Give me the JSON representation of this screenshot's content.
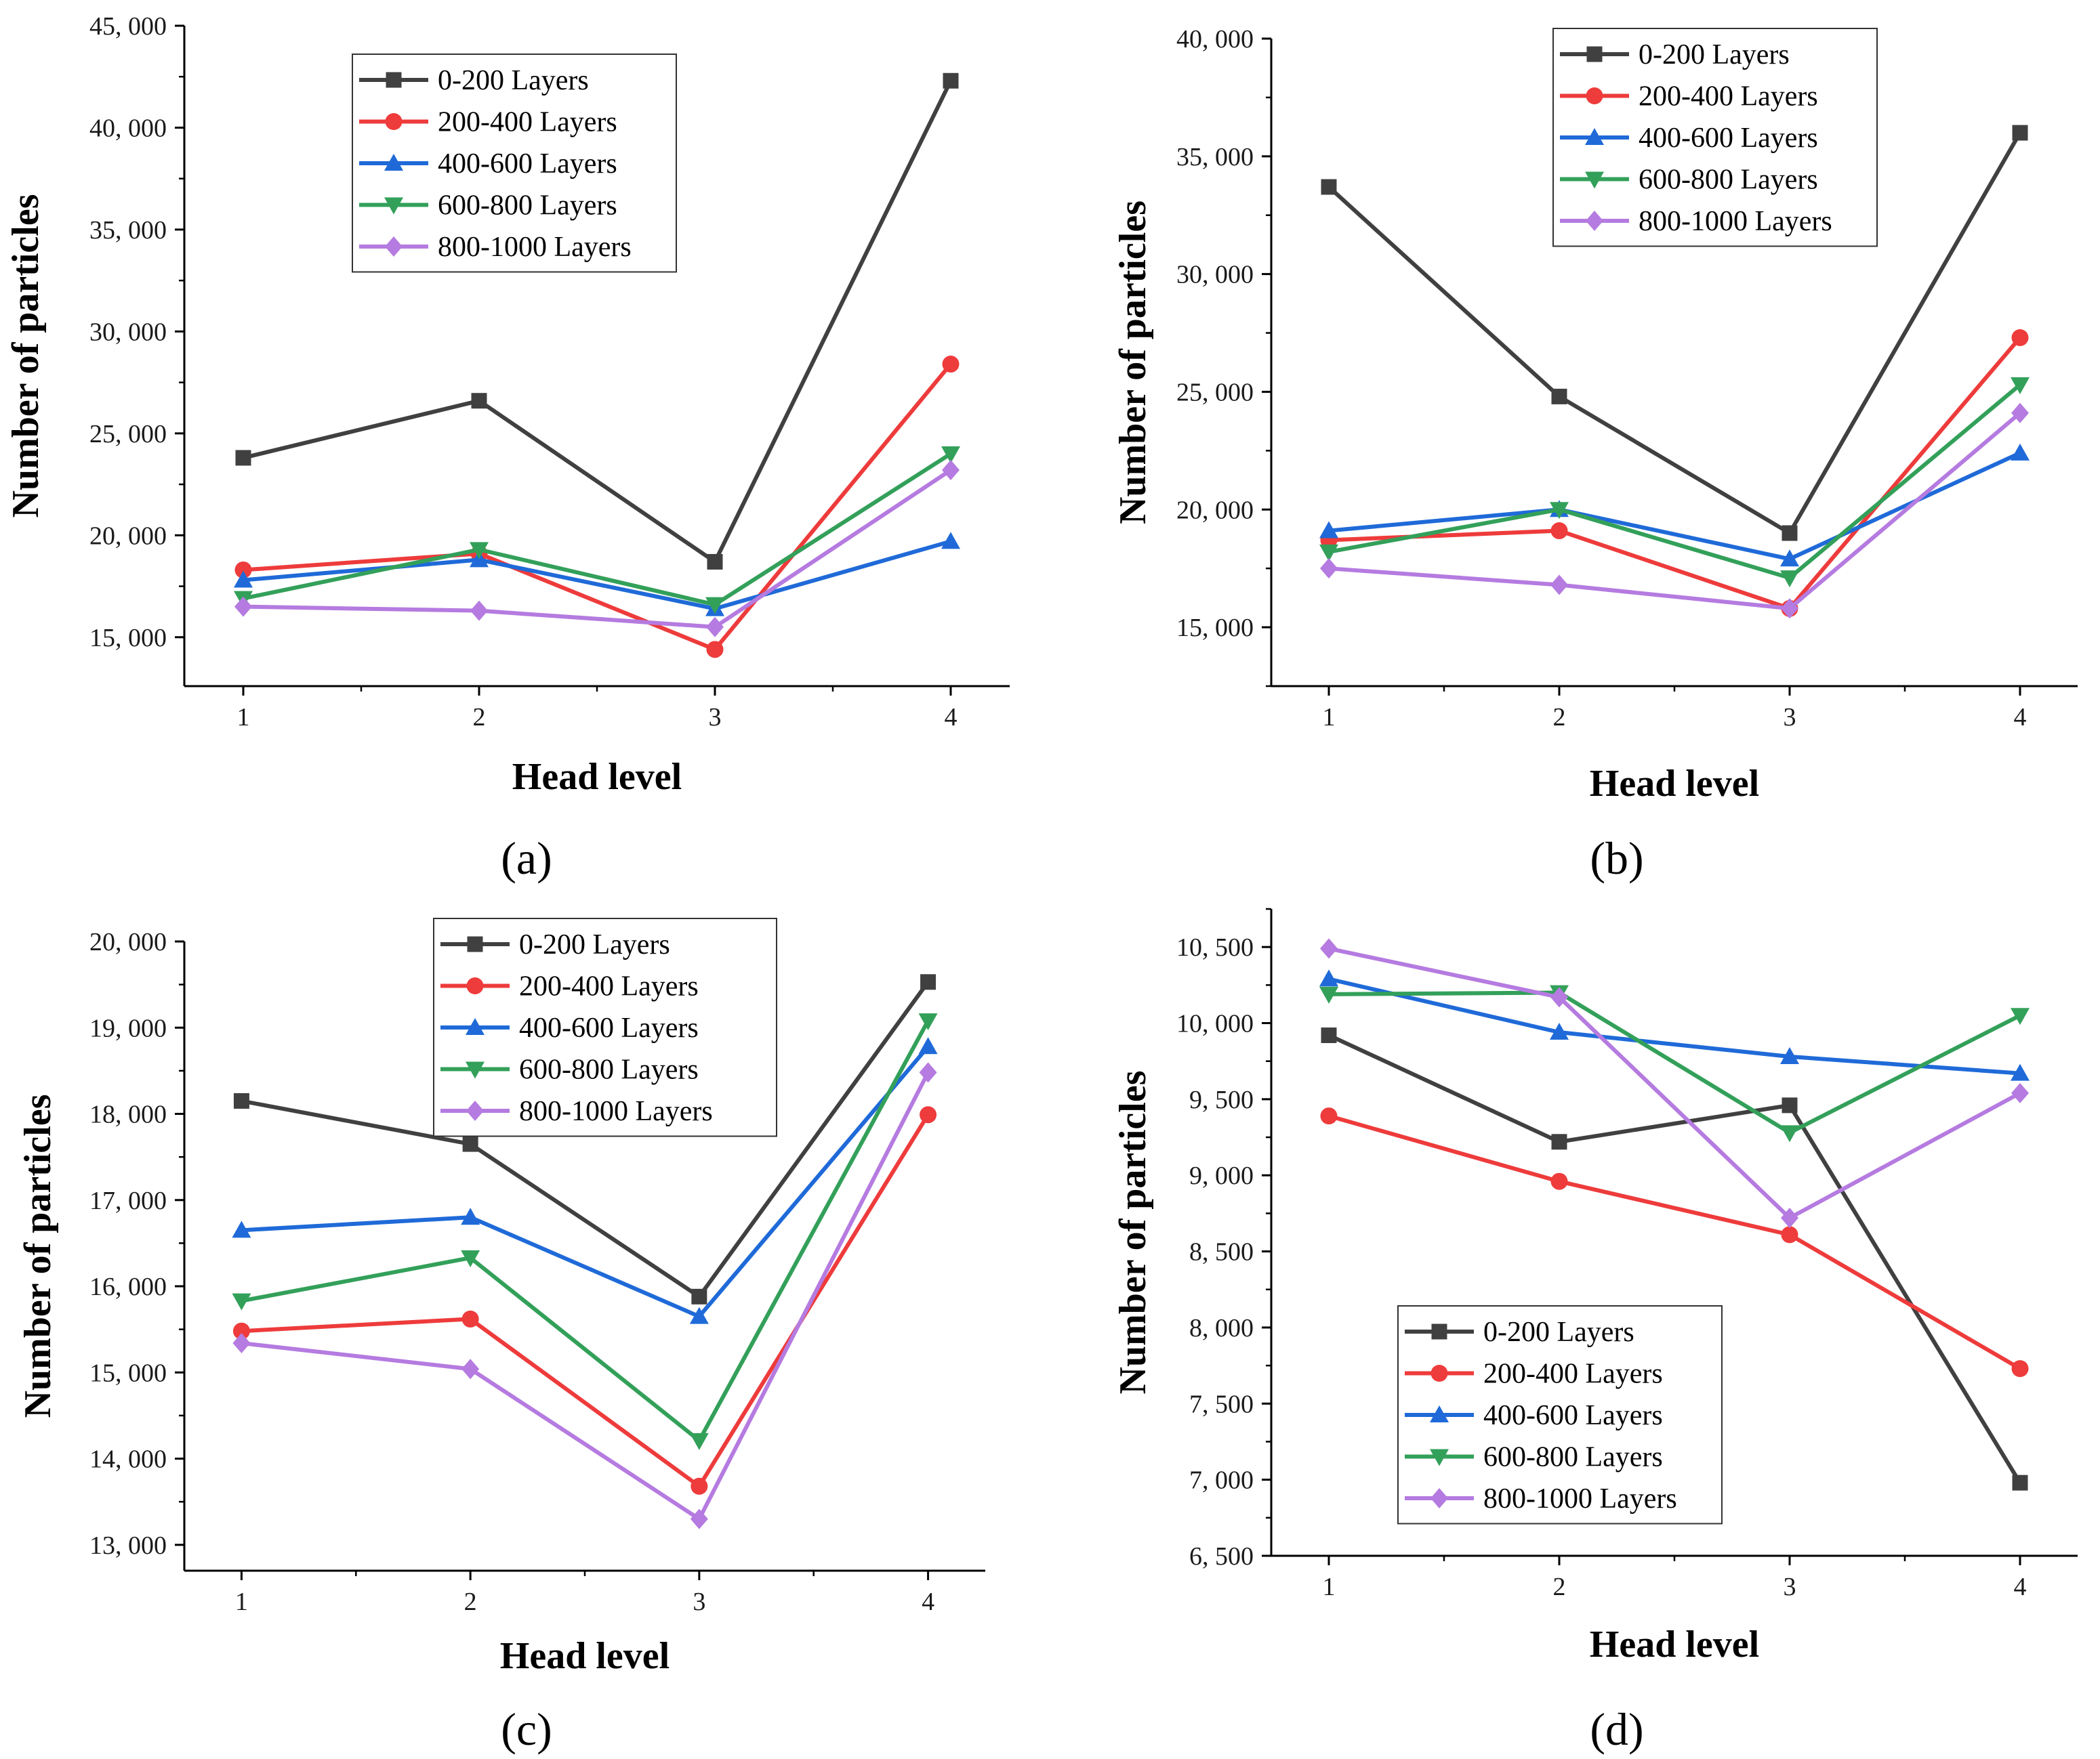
{
  "colors": {
    "0-200": "#404040",
    "200-400": "#ee3b3b",
    "400-600": "#1f6ad8",
    "600-800": "#33a05a",
    "800-1000": "#b57be0"
  },
  "chart_data": [
    {
      "type": "line",
      "panel_label": "(a)",
      "xlabel": "Head level",
      "ylabel": "Number of particles",
      "categories": [
        1,
        2,
        3,
        4
      ],
      "xlim": [
        0.75,
        4.25
      ],
      "ylim": [
        12600,
        45000
      ],
      "yticks": [
        15000,
        20000,
        25000,
        30000,
        35000,
        40000,
        45000
      ],
      "ytick_labels": [
        "15, 000",
        "20, 000",
        "25, 000",
        "30, 000",
        "35, 000",
        "40, 000",
        "45, 000"
      ],
      "legend_position": "top-center",
      "series": [
        {
          "name": "0-200 Layers",
          "marker": "square",
          "values": [
            23800,
            26600,
            18700,
            42300
          ]
        },
        {
          "name": "200-400 Layers",
          "marker": "circle",
          "values": [
            18300,
            19100,
            14400,
            28400
          ]
        },
        {
          "name": "400-600 Layers",
          "marker": "triangle-up",
          "values": [
            17800,
            18800,
            16400,
            19700
          ]
        },
        {
          "name": "600-800 Layers",
          "marker": "triangle-down",
          "values": [
            16900,
            19300,
            16600,
            24000
          ]
        },
        {
          "name": "800-1000 Layers",
          "marker": "diamond",
          "values": [
            16500,
            16300,
            15500,
            23200
          ]
        }
      ]
    },
    {
      "type": "line",
      "panel_label": "(b)",
      "xlabel": "Head level",
      "ylabel": "Number of particles",
      "categories": [
        1,
        2,
        3,
        4
      ],
      "xlim": [
        0.75,
        4.25
      ],
      "ylim": [
        12500,
        40000
      ],
      "yticks": [
        15000,
        20000,
        25000,
        30000,
        35000,
        40000
      ],
      "ytick_labels": [
        "15, 000",
        "20, 000",
        "25, 000",
        "30, 000",
        "35, 000",
        "40, 000"
      ],
      "legend_position": "top-right",
      "series": [
        {
          "name": "0-200 Layers",
          "marker": "square",
          "values": [
            33700,
            24800,
            19000,
            36000
          ]
        },
        {
          "name": "200-400 Layers",
          "marker": "circle",
          "values": [
            18700,
            19100,
            15800,
            27300
          ]
        },
        {
          "name": "400-600 Layers",
          "marker": "triangle-up",
          "values": [
            19100,
            20000,
            17900,
            22400
          ]
        },
        {
          "name": "600-800 Layers",
          "marker": "triangle-down",
          "values": [
            18200,
            20000,
            17100,
            25300
          ]
        },
        {
          "name": "800-1000 Layers",
          "marker": "diamond",
          "values": [
            17500,
            16800,
            15800,
            24100
          ]
        }
      ]
    },
    {
      "type": "line",
      "panel_label": "(c)",
      "xlabel": "Head level",
      "ylabel": "Number of particles",
      "categories": [
        1,
        2,
        3,
        4
      ],
      "xlim": [
        0.75,
        4.25
      ],
      "ylim": [
        12700,
        20000
      ],
      "yticks": [
        13000,
        14000,
        15000,
        16000,
        17000,
        18000,
        19000,
        20000
      ],
      "ytick_labels": [
        "13, 000",
        "14, 000",
        "15, 000",
        "16, 000",
        "17, 000",
        "18, 000",
        "19, 000",
        "20, 000"
      ],
      "legend_position": "top-right",
      "series": [
        {
          "name": "0-200 Layers",
          "marker": "square",
          "values": [
            18150,
            17650,
            15880,
            19530
          ]
        },
        {
          "name": "200-400 Layers",
          "marker": "circle",
          "values": [
            15480,
            15620,
            13680,
            17990
          ]
        },
        {
          "name": "400-600 Layers",
          "marker": "triangle-up",
          "values": [
            16650,
            16800,
            15650,
            18780
          ]
        },
        {
          "name": "600-800 Layers",
          "marker": "triangle-down",
          "values": [
            15830,
            16330,
            14210,
            19080
          ]
        },
        {
          "name": "800-1000 Layers",
          "marker": "diamond",
          "values": [
            15340,
            15040,
            13300,
            18480
          ]
        }
      ]
    },
    {
      "type": "line",
      "panel_label": "(d)",
      "xlabel": "Head level",
      "ylabel": "Number of particles",
      "categories": [
        1,
        2,
        3,
        4
      ],
      "xlim": [
        0.75,
        4.25
      ],
      "ylim": [
        6500,
        10750
      ],
      "yticks": [
        6500,
        7000,
        7500,
        8000,
        8500,
        9000,
        9500,
        10000,
        10500
      ],
      "ytick_labels": [
        "6, 500",
        "7, 000",
        "7, 500",
        "8, 000",
        "8, 500",
        "9, 000",
        "9, 500",
        "10, 000",
        "10, 500"
      ],
      "legend_position": "bottom-center",
      "series": [
        {
          "name": "0-200 Layers",
          "marker": "square",
          "values": [
            9920,
            9220,
            9460,
            6980
          ]
        },
        {
          "name": "200-400 Layers",
          "marker": "circle",
          "values": [
            9390,
            8960,
            8610,
            7730
          ]
        },
        {
          "name": "400-600 Layers",
          "marker": "triangle-up",
          "values": [
            10290,
            9940,
            9780,
            9670
          ]
        },
        {
          "name": "600-800 Layers",
          "marker": "triangle-down",
          "values": [
            10190,
            10200,
            9280,
            10050
          ]
        },
        {
          "name": "800-1000 Layers",
          "marker": "diamond",
          "values": [
            10490,
            10170,
            8720,
            9540
          ]
        }
      ]
    }
  ]
}
